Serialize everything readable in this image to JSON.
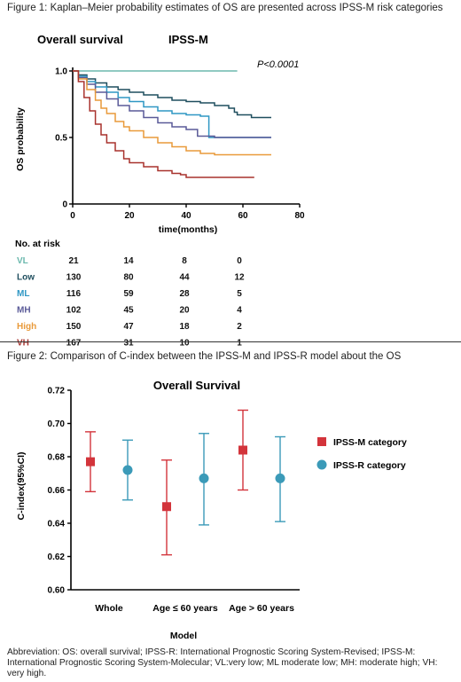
{
  "figure1": {
    "caption": "Figure 1: Kaplan–Meier probability estimates of OS are presented across IPSS-M risk categories",
    "header_left": "Overall survival",
    "header_right": "IPSS-M",
    "pvalue": "P<0.0001",
    "ylabel": "OS probability",
    "xlabel": "time(months)",
    "risk_table_title": "No. at risk",
    "x_ticks": [
      "0",
      "20",
      "40",
      "60",
      "80"
    ],
    "y_ticks": [
      "0",
      "0.5",
      "1.0"
    ],
    "risk_rows": [
      {
        "label": "VL",
        "color": "#6bb8ad",
        "counts": [
          "21",
          "14",
          "8",
          "0"
        ]
      },
      {
        "label": "Low",
        "color": "#1f4e5e",
        "counts": [
          "130",
          "80",
          "44",
          "12"
        ]
      },
      {
        "label": "ML",
        "color": "#2f97c4",
        "counts": [
          "116",
          "59",
          "28",
          "5"
        ]
      },
      {
        "label": "MH",
        "color": "#5a5a98",
        "counts": [
          "102",
          "45",
          "20",
          "4"
        ]
      },
      {
        "label": "High",
        "color": "#e99a3a",
        "counts": [
          "150",
          "47",
          "18",
          "2"
        ]
      },
      {
        "label": "VH",
        "color": "#a8322d",
        "counts": [
          "167",
          "31",
          "10",
          "1"
        ]
      }
    ]
  },
  "figure2": {
    "caption": "Figure 2: Comparison of C-index between the IPSS-M and IPSS-R model about the OS",
    "title": "Overall Survival",
    "ylabel": "C-index(95%CI)",
    "xlabel": "Model",
    "y_ticks": [
      "0.60",
      "0.62",
      "0.64",
      "0.66",
      "0.68",
      "0.70",
      "0.72"
    ],
    "legend": [
      {
        "label": "IPSS-M category",
        "color": "#d3343b",
        "shape": "square"
      },
      {
        "label": "IPSS-R category",
        "color": "#3b9ab8",
        "shape": "circle"
      }
    ]
  },
  "abbreviation": "Abbreviation: OS: overall survival; IPSS-R: International Prognostic Scoring System-Revised; IPSS-M: International Prognostic Scoring System-Molecular;  VL:very low;  ML moderate low; MH: moderate high; VH: very high.",
  "chart_data": [
    {
      "type": "line",
      "subtype": "kaplan-meier",
      "title": "Overall survival",
      "xlabel": "time(months)",
      "ylabel": "OS probability",
      "xlim": [
        0,
        80
      ],
      "ylim": [
        0,
        1.0
      ],
      "series": [
        {
          "name": "VL",
          "color": "#6bb8ad",
          "points": [
            [
              0,
              1.0
            ],
            [
              58,
              1.0
            ]
          ]
        },
        {
          "name": "Low",
          "color": "#1f4e5e",
          "points": [
            [
              0,
              1.0
            ],
            [
              2,
              0.97
            ],
            [
              5,
              0.94
            ],
            [
              8,
              0.91
            ],
            [
              12,
              0.88
            ],
            [
              16,
              0.86
            ],
            [
              20,
              0.84
            ],
            [
              25,
              0.82
            ],
            [
              30,
              0.8
            ],
            [
              35,
              0.78
            ],
            [
              40,
              0.77
            ],
            [
              45,
              0.76
            ],
            [
              50,
              0.74
            ],
            [
              55,
              0.72
            ],
            [
              57,
              0.69
            ],
            [
              58,
              0.67
            ],
            [
              62,
              0.67
            ],
            [
              63,
              0.65
            ],
            [
              70,
              0.65
            ]
          ]
        },
        {
          "name": "ML",
          "color": "#2f97c4",
          "points": [
            [
              0,
              1.0
            ],
            [
              2,
              0.96
            ],
            [
              5,
              0.92
            ],
            [
              8,
              0.88
            ],
            [
              12,
              0.84
            ],
            [
              16,
              0.8
            ],
            [
              20,
              0.77
            ],
            [
              25,
              0.73
            ],
            [
              30,
              0.7
            ],
            [
              35,
              0.68
            ],
            [
              40,
              0.67
            ],
            [
              45,
              0.66
            ],
            [
              48,
              0.66
            ],
            [
              48,
              0.5
            ],
            [
              70,
              0.5
            ]
          ]
        },
        {
          "name": "MH",
          "color": "#5a5a98",
          "points": [
            [
              0,
              1.0
            ],
            [
              2,
              0.95
            ],
            [
              5,
              0.9
            ],
            [
              8,
              0.84
            ],
            [
              12,
              0.79
            ],
            [
              16,
              0.74
            ],
            [
              20,
              0.7
            ],
            [
              25,
              0.65
            ],
            [
              30,
              0.61
            ],
            [
              35,
              0.58
            ],
            [
              40,
              0.56
            ],
            [
              44,
              0.51
            ],
            [
              50,
              0.5
            ],
            [
              70,
              0.5
            ]
          ]
        },
        {
          "name": "High",
          "color": "#e99a3a",
          "points": [
            [
              0,
              1.0
            ],
            [
              2,
              0.94
            ],
            [
              5,
              0.86
            ],
            [
              8,
              0.78
            ],
            [
              10,
              0.72
            ],
            [
              12,
              0.68
            ],
            [
              15,
              0.62
            ],
            [
              18,
              0.58
            ],
            [
              20,
              0.55
            ],
            [
              25,
              0.5
            ],
            [
              30,
              0.46
            ],
            [
              35,
              0.43
            ],
            [
              40,
              0.4
            ],
            [
              45,
              0.38
            ],
            [
              50,
              0.37
            ],
            [
              70,
              0.37
            ]
          ]
        },
        {
          "name": "VH",
          "color": "#a8322d",
          "points": [
            [
              0,
              1.0
            ],
            [
              2,
              0.92
            ],
            [
              4,
              0.8
            ],
            [
              6,
              0.7
            ],
            [
              8,
              0.6
            ],
            [
              10,
              0.52
            ],
            [
              12,
              0.46
            ],
            [
              15,
              0.4
            ],
            [
              18,
              0.34
            ],
            [
              20,
              0.31
            ],
            [
              25,
              0.28
            ],
            [
              30,
              0.25
            ],
            [
              35,
              0.23
            ],
            [
              38,
              0.22
            ],
            [
              40,
              0.2
            ],
            [
              64,
              0.2
            ]
          ]
        }
      ]
    },
    {
      "type": "scatter",
      "subtype": "error-bar",
      "title": "Overall Survival",
      "xlabel": "Model",
      "ylabel": "C-index(95%CI)",
      "ylim": [
        0.6,
        0.72
      ],
      "categories": [
        "Whole",
        "Age ≤ 60 years",
        "Age > 60 years"
      ],
      "series": [
        {
          "name": "IPSS-M category",
          "color": "#d3343b",
          "values": [
            0.677,
            0.65,
            0.684
          ],
          "lower": [
            0.659,
            0.621,
            0.66
          ],
          "upper": [
            0.695,
            0.678,
            0.708
          ]
        },
        {
          "name": "IPSS-R category",
          "color": "#3b9ab8",
          "values": [
            0.672,
            0.667,
            0.667
          ],
          "lower": [
            0.654,
            0.639,
            0.641
          ],
          "upper": [
            0.69,
            0.694,
            0.692
          ]
        }
      ]
    }
  ]
}
